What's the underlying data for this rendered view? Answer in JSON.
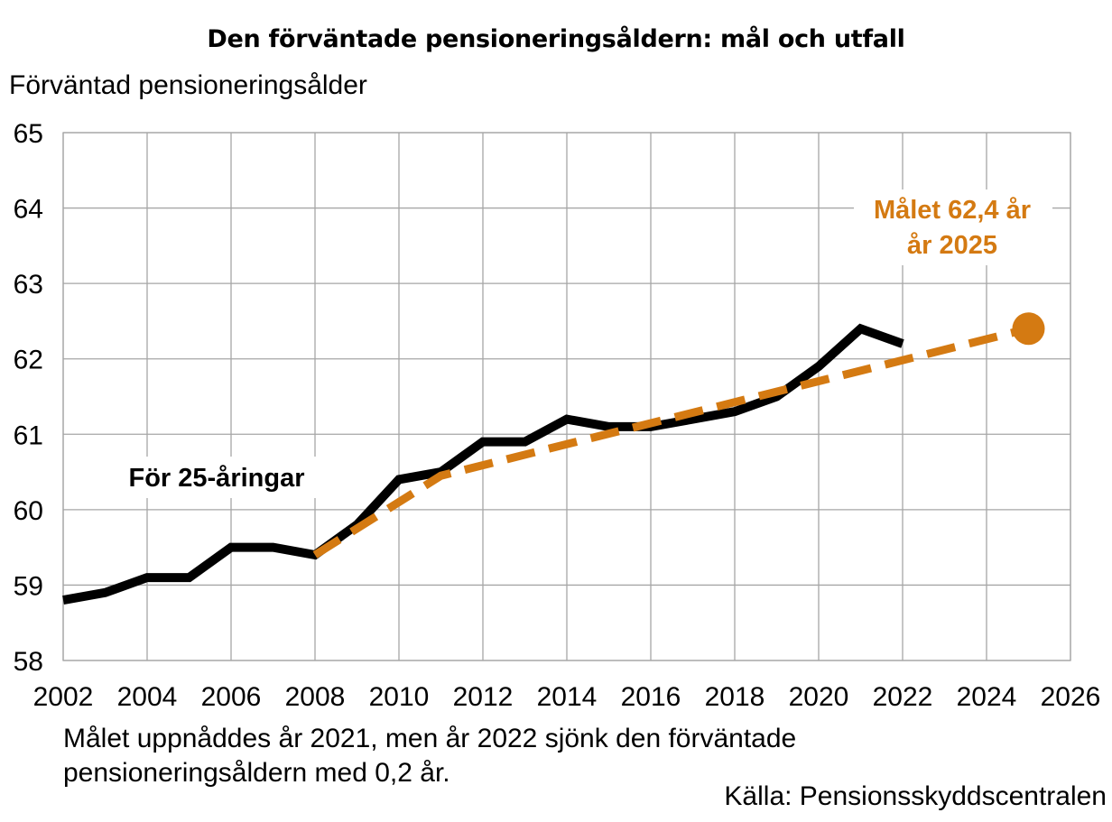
{
  "title": "Den förväntade pensioneringsåldern: mål och utfall",
  "note": "Målet uppnåddes år 2021, men år 2022 sjönk den förväntade pensioneringsåldern med 0,2 år.",
  "source": "Källa: Pensionsskyddscentralen",
  "annotations": {
    "series_label": "För 25-åringar",
    "target_line1": "Målet 62,4 år",
    "target_line2": "år 2025"
  },
  "colors": {
    "actual": "#000000",
    "target": "#D47A12",
    "grid": "#A6A6A6"
  },
  "chart_data": {
    "type": "line",
    "title": "Den förväntade pensioneringsåldern: mål och utfall",
    "xlabel": "",
    "ylabel": "Förväntad pensioneringsålder",
    "xlim": [
      2002,
      2026
    ],
    "ylim": [
      58,
      65
    ],
    "x_ticks": [
      2002,
      2004,
      2006,
      2008,
      2010,
      2012,
      2014,
      2016,
      2018,
      2020,
      2022,
      2024,
      2026
    ],
    "y_ticks": [
      58,
      59,
      60,
      61,
      62,
      63,
      64,
      65
    ],
    "grid": true,
    "series": [
      {
        "name": "För 25-åringar",
        "style": "solid",
        "color": "#000000",
        "x": [
          2002,
          2003,
          2004,
          2005,
          2006,
          2007,
          2008,
          2009,
          2010,
          2011,
          2012,
          2013,
          2014,
          2015,
          2016,
          2017,
          2018,
          2019,
          2020,
          2021,
          2022
        ],
        "y": [
          58.8,
          58.9,
          59.1,
          59.1,
          59.5,
          59.5,
          59.4,
          59.8,
          60.4,
          60.5,
          60.9,
          60.9,
          61.2,
          61.1,
          61.1,
          61.2,
          61.3,
          61.5,
          61.9,
          62.4,
          62.2
        ]
      },
      {
        "name": "Målet",
        "style": "dashed",
        "color": "#D47A12",
        "x": [
          2008,
          2011,
          2025
        ],
        "y": [
          59.4,
          60.45,
          62.4
        ]
      }
    ],
    "markers": [
      {
        "x": 2025,
        "y": 62.4,
        "label": "Målet 62,4 år år 2025",
        "color": "#D47A12"
      }
    ]
  }
}
